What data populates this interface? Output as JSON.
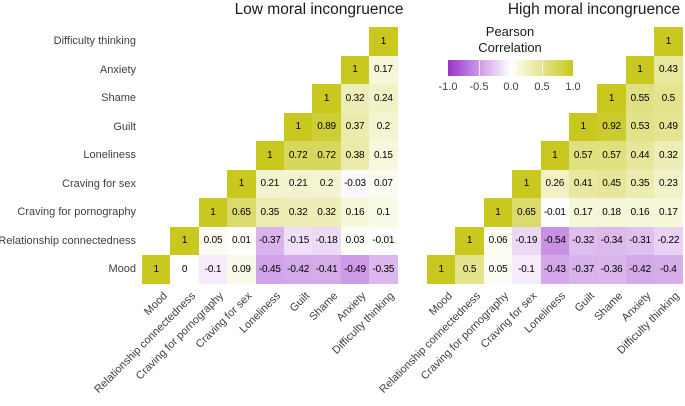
{
  "legend": {
    "title_lines": [
      "Pearson",
      "Correlation"
    ],
    "ticks": [
      "-1.0",
      "-0.5",
      "0.0",
      "0.5",
      "1.0"
    ],
    "range": [
      -1,
      1
    ]
  },
  "colors": {
    "negative": "#9933CC",
    "zero": "#FFFFFF",
    "positive": "#C8C81E"
  },
  "chart_data": [
    {
      "type": "heatmap",
      "title": "Low moral incongruence",
      "legend_title": "Pearson Correlation",
      "x_categories": [
        "Mood",
        "Relationship connectedness",
        "Craving for pornography",
        "Craving for sex",
        "Loneliness",
        "Guilt",
        "Shame",
        "Anxiety",
        "Difficulty thinking"
      ],
      "rows": [
        {
          "label": "Difficulty thinking",
          "values": [
            "1"
          ]
        },
        {
          "label": "Anxiety",
          "values": [
            "1",
            "0.17"
          ]
        },
        {
          "label": "Shame",
          "values": [
            "1",
            "0.32",
            "0.24"
          ]
        },
        {
          "label": "Guilt",
          "values": [
            "1",
            "0.89",
            "0.37",
            "0.2"
          ]
        },
        {
          "label": "Loneliness",
          "values": [
            "1",
            "0.72",
            "0.72",
            "0.38",
            "0.15"
          ]
        },
        {
          "label": "Craving for sex",
          "values": [
            "1",
            "0.21",
            "0.21",
            "0.2",
            "-0.03",
            "0.07"
          ]
        },
        {
          "label": "Craving for pornography",
          "values": [
            "1",
            "0.65",
            "0.35",
            "0.32",
            "0.32",
            "0.16",
            "0.1"
          ]
        },
        {
          "label": "Relationship connectedness",
          "values": [
            "1",
            "0.05",
            "0.01",
            "-0.37",
            "-0.15",
            "-0.18",
            "0.03",
            "-0.01"
          ]
        },
        {
          "label": "Mood",
          "values": [
            "1",
            "0",
            "-0.1",
            "0.09",
            "-0.45",
            "-0.42",
            "-0.41",
            "-0.49",
            "-0.35"
          ]
        }
      ]
    },
    {
      "type": "heatmap",
      "title": "High moral incongruence",
      "legend_title": "Pearson Correlation",
      "x_categories": [
        "Mood",
        "Relationship connectedness",
        "Craving for pornography",
        "Craving for sex",
        "Loneliness",
        "Guilt",
        "Shame",
        "Anxiety",
        "Difficulty thinking"
      ],
      "rows": [
        {
          "label": "Difficulty thinking",
          "values": [
            "1"
          ]
        },
        {
          "label": "Anxiety",
          "values": [
            "1",
            "0.43"
          ]
        },
        {
          "label": "Shame",
          "values": [
            "1",
            "0.55",
            "0.5"
          ]
        },
        {
          "label": "Guilt",
          "values": [
            "1",
            "0.92",
            "0.53",
            "0.49"
          ]
        },
        {
          "label": "Loneliness",
          "values": [
            "1",
            "0.57",
            "0.57",
            "0.44",
            "0.32"
          ]
        },
        {
          "label": "Craving for sex",
          "values": [
            "1",
            "0.26",
            "0.41",
            "0.45",
            "0.35",
            "0.23"
          ]
        },
        {
          "label": "Craving for pornography",
          "values": [
            "1",
            "0.65",
            "-0.01",
            "0.17",
            "0.18",
            "0.16",
            "0.17"
          ]
        },
        {
          "label": "Relationship connectedness",
          "values": [
            "1",
            "0.06",
            "-0.19",
            "-0.54",
            "-0.32",
            "-0.34",
            "-0.31",
            "-0.22"
          ]
        },
        {
          "label": "Mood",
          "values": [
            "1",
            "0.5",
            "0.05",
            "-0.1",
            "-0.43",
            "-0.37",
            "-0.36",
            "-0.42",
            "-0.4"
          ]
        }
      ]
    }
  ]
}
